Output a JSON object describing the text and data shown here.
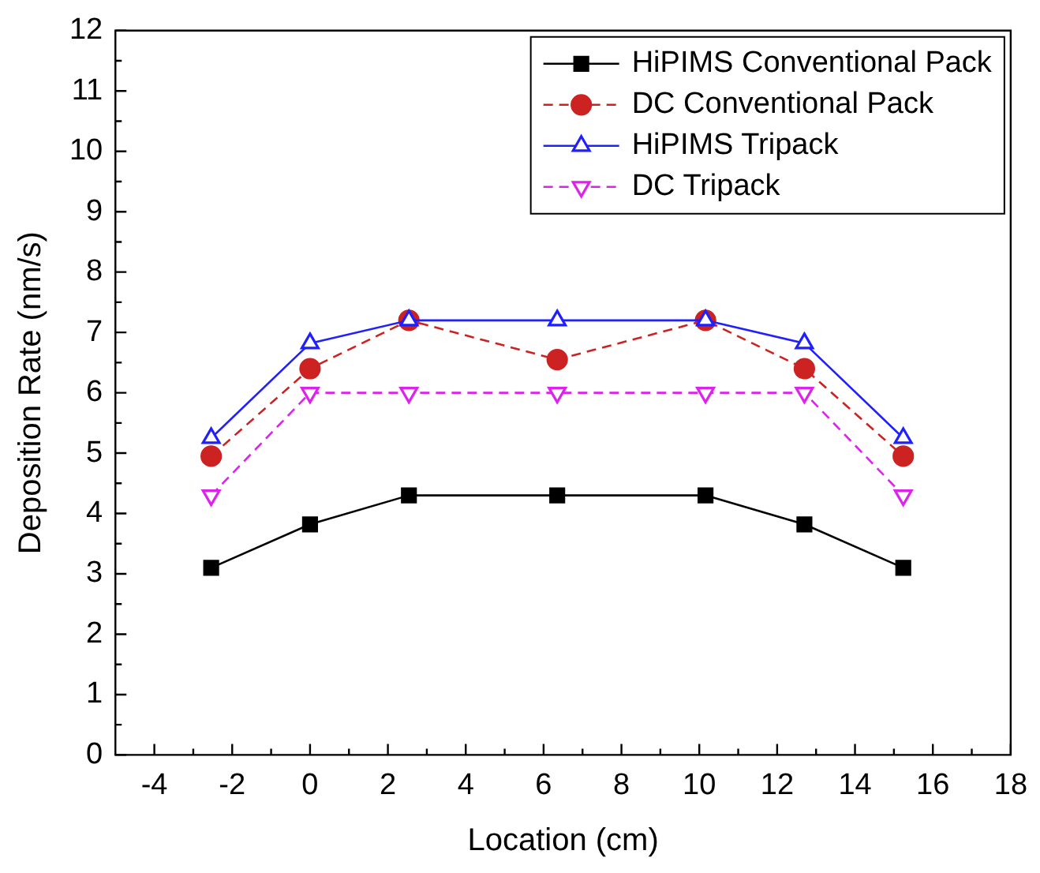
{
  "chart_data": {
    "type": "line",
    "xlabel": "Location (cm)",
    "ylabel": "Deposition Rate (nm/s)",
    "x": [
      -2.54,
      0,
      2.54,
      6.35,
      10.16,
      12.7,
      15.24
    ],
    "series": [
      {
        "name": "HiPIMS Conventional Pack",
        "color": "#000000",
        "marker": "square",
        "line_style": "solid",
        "values": [
          3.1,
          3.82,
          4.3,
          4.3,
          4.3,
          3.82,
          3.1
        ]
      },
      {
        "name": "DC Conventional Pack",
        "color": "#cc2222",
        "marker": "circle",
        "line_style": "dashed",
        "values": [
          4.95,
          6.4,
          7.2,
          6.55,
          7.2,
          6.4,
          4.95
        ]
      },
      {
        "name": "HiPIMS Tripack",
        "color": "#2020ff",
        "marker": "triangle",
        "line_style": "solid",
        "values": [
          5.25,
          6.82,
          7.2,
          7.2,
          7.2,
          6.82,
          5.25
        ]
      },
      {
        "name": "DC Tripack",
        "color": "#dd22ee",
        "marker": "triangle-down",
        "line_style": "dashed",
        "values": [
          4.3,
          6.0,
          6.0,
          6.0,
          6.0,
          6.0,
          4.3
        ]
      }
    ],
    "xlim": [
      -5,
      18
    ],
    "xticks": [
      -4,
      -2,
      0,
      2,
      4,
      6,
      8,
      10,
      12,
      14,
      16,
      18
    ],
    "ylim": [
      0,
      12
    ],
    "yticks": [
      0,
      1,
      2,
      3,
      4,
      5,
      6,
      7,
      8,
      9,
      10,
      11,
      12
    ],
    "grid": false,
    "legend": "top right"
  }
}
